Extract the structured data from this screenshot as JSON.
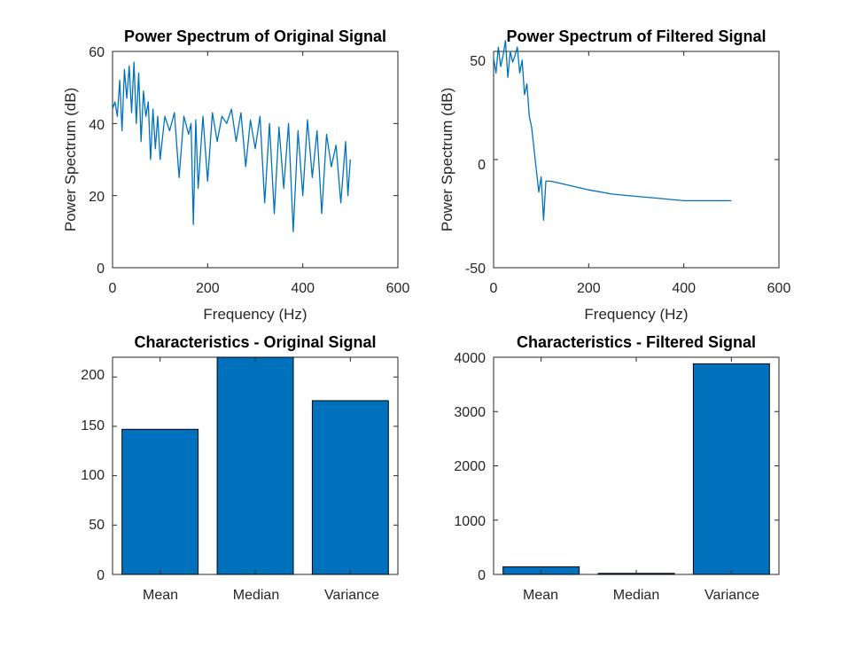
{
  "colors": {
    "line": "#0072BD",
    "bar": "#0072BD",
    "axis": "#262626"
  },
  "chart_data": [
    {
      "type": "line",
      "title": "Power Spectrum of Original Signal",
      "xlabel": "Frequency (Hz)",
      "ylabel": "Power Spectrum (dB)",
      "xlim": [
        0,
        600
      ],
      "ylim": [
        0,
        60
      ],
      "xticks": [
        "0",
        "200",
        "400",
        "600"
      ],
      "yticks": [
        "0",
        "20",
        "40",
        "60"
      ],
      "series": [
        {
          "x": [
            0,
            5,
            10,
            15,
            20,
            25,
            30,
            35,
            40,
            45,
            50,
            55,
            60,
            65,
            70,
            75,
            80,
            85,
            90,
            95,
            100,
            110,
            120,
            130,
            140,
            150,
            160,
            165,
            170,
            175,
            180,
            190,
            200,
            210,
            220,
            230,
            240,
            250,
            260,
            270,
            280,
            290,
            300,
            310,
            320,
            330,
            340,
            350,
            360,
            370,
            380,
            390,
            400,
            410,
            420,
            430,
            440,
            450,
            460,
            470,
            480,
            490,
            495,
            500
          ],
          "y": [
            44,
            46,
            42,
            52,
            38,
            55,
            47,
            56,
            43,
            57,
            40,
            54,
            35,
            49,
            42,
            46,
            30,
            44,
            33,
            42,
            30,
            42,
            38,
            43,
            25,
            42,
            37,
            40,
            12,
            41,
            22,
            42,
            24,
            43,
            35,
            42,
            40,
            44,
            35,
            43,
            28,
            41,
            33,
            42,
            18,
            40,
            15,
            39,
            22,
            40,
            10,
            38,
            20,
            41,
            25,
            38,
            15,
            37,
            28,
            34,
            18,
            35,
            20,
            30
          ]
        }
      ]
    },
    {
      "type": "line",
      "title": "Power Spectrum of Filtered Signal",
      "xlabel": "Frequency (Hz)",
      "ylabel": "Power Spectrum (dB)",
      "xlim": [
        0,
        600
      ],
      "ylim": [
        -50,
        50
      ],
      "xticks": [
        "0",
        "200",
        "400",
        "600"
      ],
      "yticks": [
        "-50",
        "0",
        "50"
      ],
      "series": [
        {
          "x": [
            0,
            5,
            10,
            15,
            20,
            25,
            30,
            35,
            40,
            45,
            50,
            55,
            60,
            65,
            70,
            75,
            80,
            85,
            90,
            95,
            100,
            105,
            110,
            120,
            140,
            160,
            180,
            200,
            250,
            300,
            350,
            400,
            450,
            500
          ],
          "y": [
            47,
            40,
            52,
            43,
            48,
            55,
            38,
            50,
            45,
            48,
            52,
            40,
            46,
            30,
            35,
            20,
            15,
            5,
            -5,
            -15,
            -8,
            -28,
            -10,
            -10,
            -11,
            -12,
            -13,
            -14,
            -16,
            -17,
            -18,
            -19,
            -19,
            -19
          ]
        }
      ]
    },
    {
      "type": "bar",
      "title": "Characteristics - Original Signal",
      "categories": [
        "Mean",
        "Median",
        "Variance"
      ],
      "values": [
        147,
        220,
        176
      ],
      "ylim": [
        0,
        220
      ],
      "yticks": [
        "0",
        "50",
        "100",
        "150",
        "200"
      ]
    },
    {
      "type": "bar",
      "title": "Characteristics - Filtered Signal",
      "categories": [
        "Mean",
        "Median",
        "Variance"
      ],
      "values": [
        140,
        20,
        3880
      ],
      "ylim": [
        0,
        4000
      ],
      "yticks": [
        "0",
        "1000",
        "2000",
        "3000",
        "4000"
      ]
    }
  ]
}
